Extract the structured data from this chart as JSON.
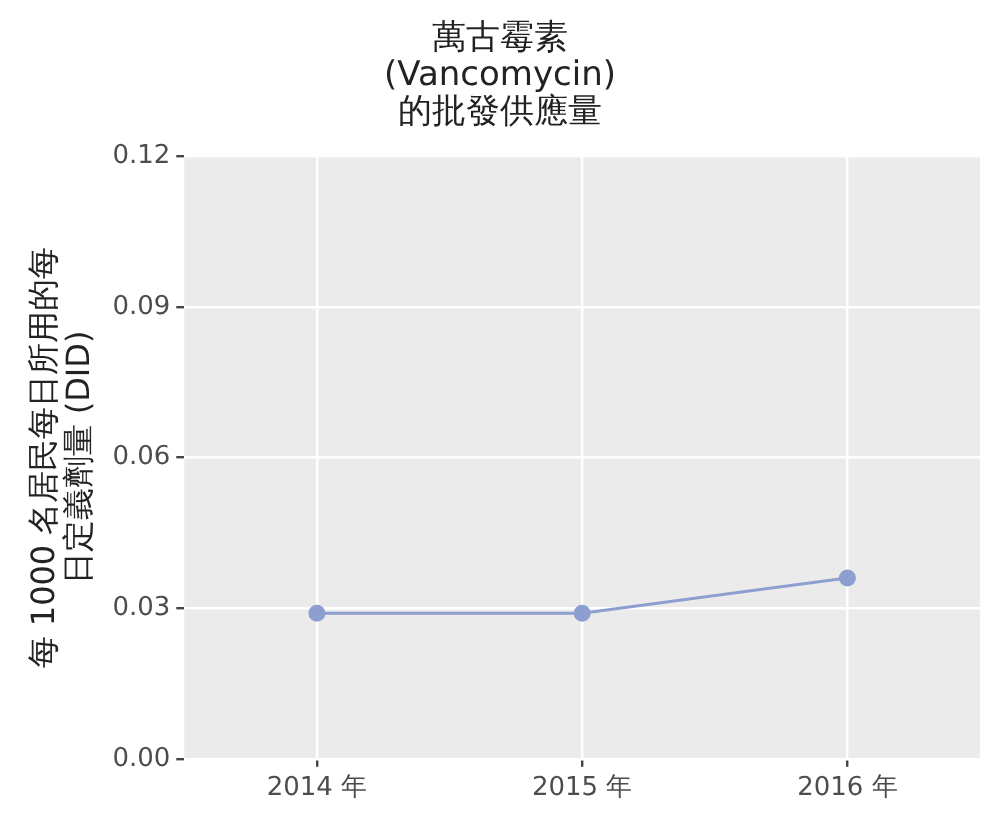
{
  "chart_data": {
    "type": "line",
    "title": "萬古霉素\n(Vancomycin)\n的批發供應量",
    "ylabel": "每 1000 名居民每日所用的每日定義劑量 (DID)",
    "categories": [
      "2014 年",
      "2015 年",
      "2016 年"
    ],
    "series": [
      {
        "color": "#8c9fd0",
        "values": [
          0.029,
          0.029,
          0.036
        ]
      }
    ],
    "ylim": [
      0,
      0.12
    ],
    "yticks": [
      {
        "value": 0,
        "label": "0.00"
      },
      {
        "value": 0.03,
        "label": "0.03"
      },
      {
        "value": 0.06,
        "label": "0.06"
      },
      {
        "value": 0.09,
        "label": "0.09"
      },
      {
        "value": 0.12,
        "label": "0.12"
      }
    ],
    "grid": true,
    "legend": false,
    "marker": "circle",
    "line_style": "solid"
  }
}
